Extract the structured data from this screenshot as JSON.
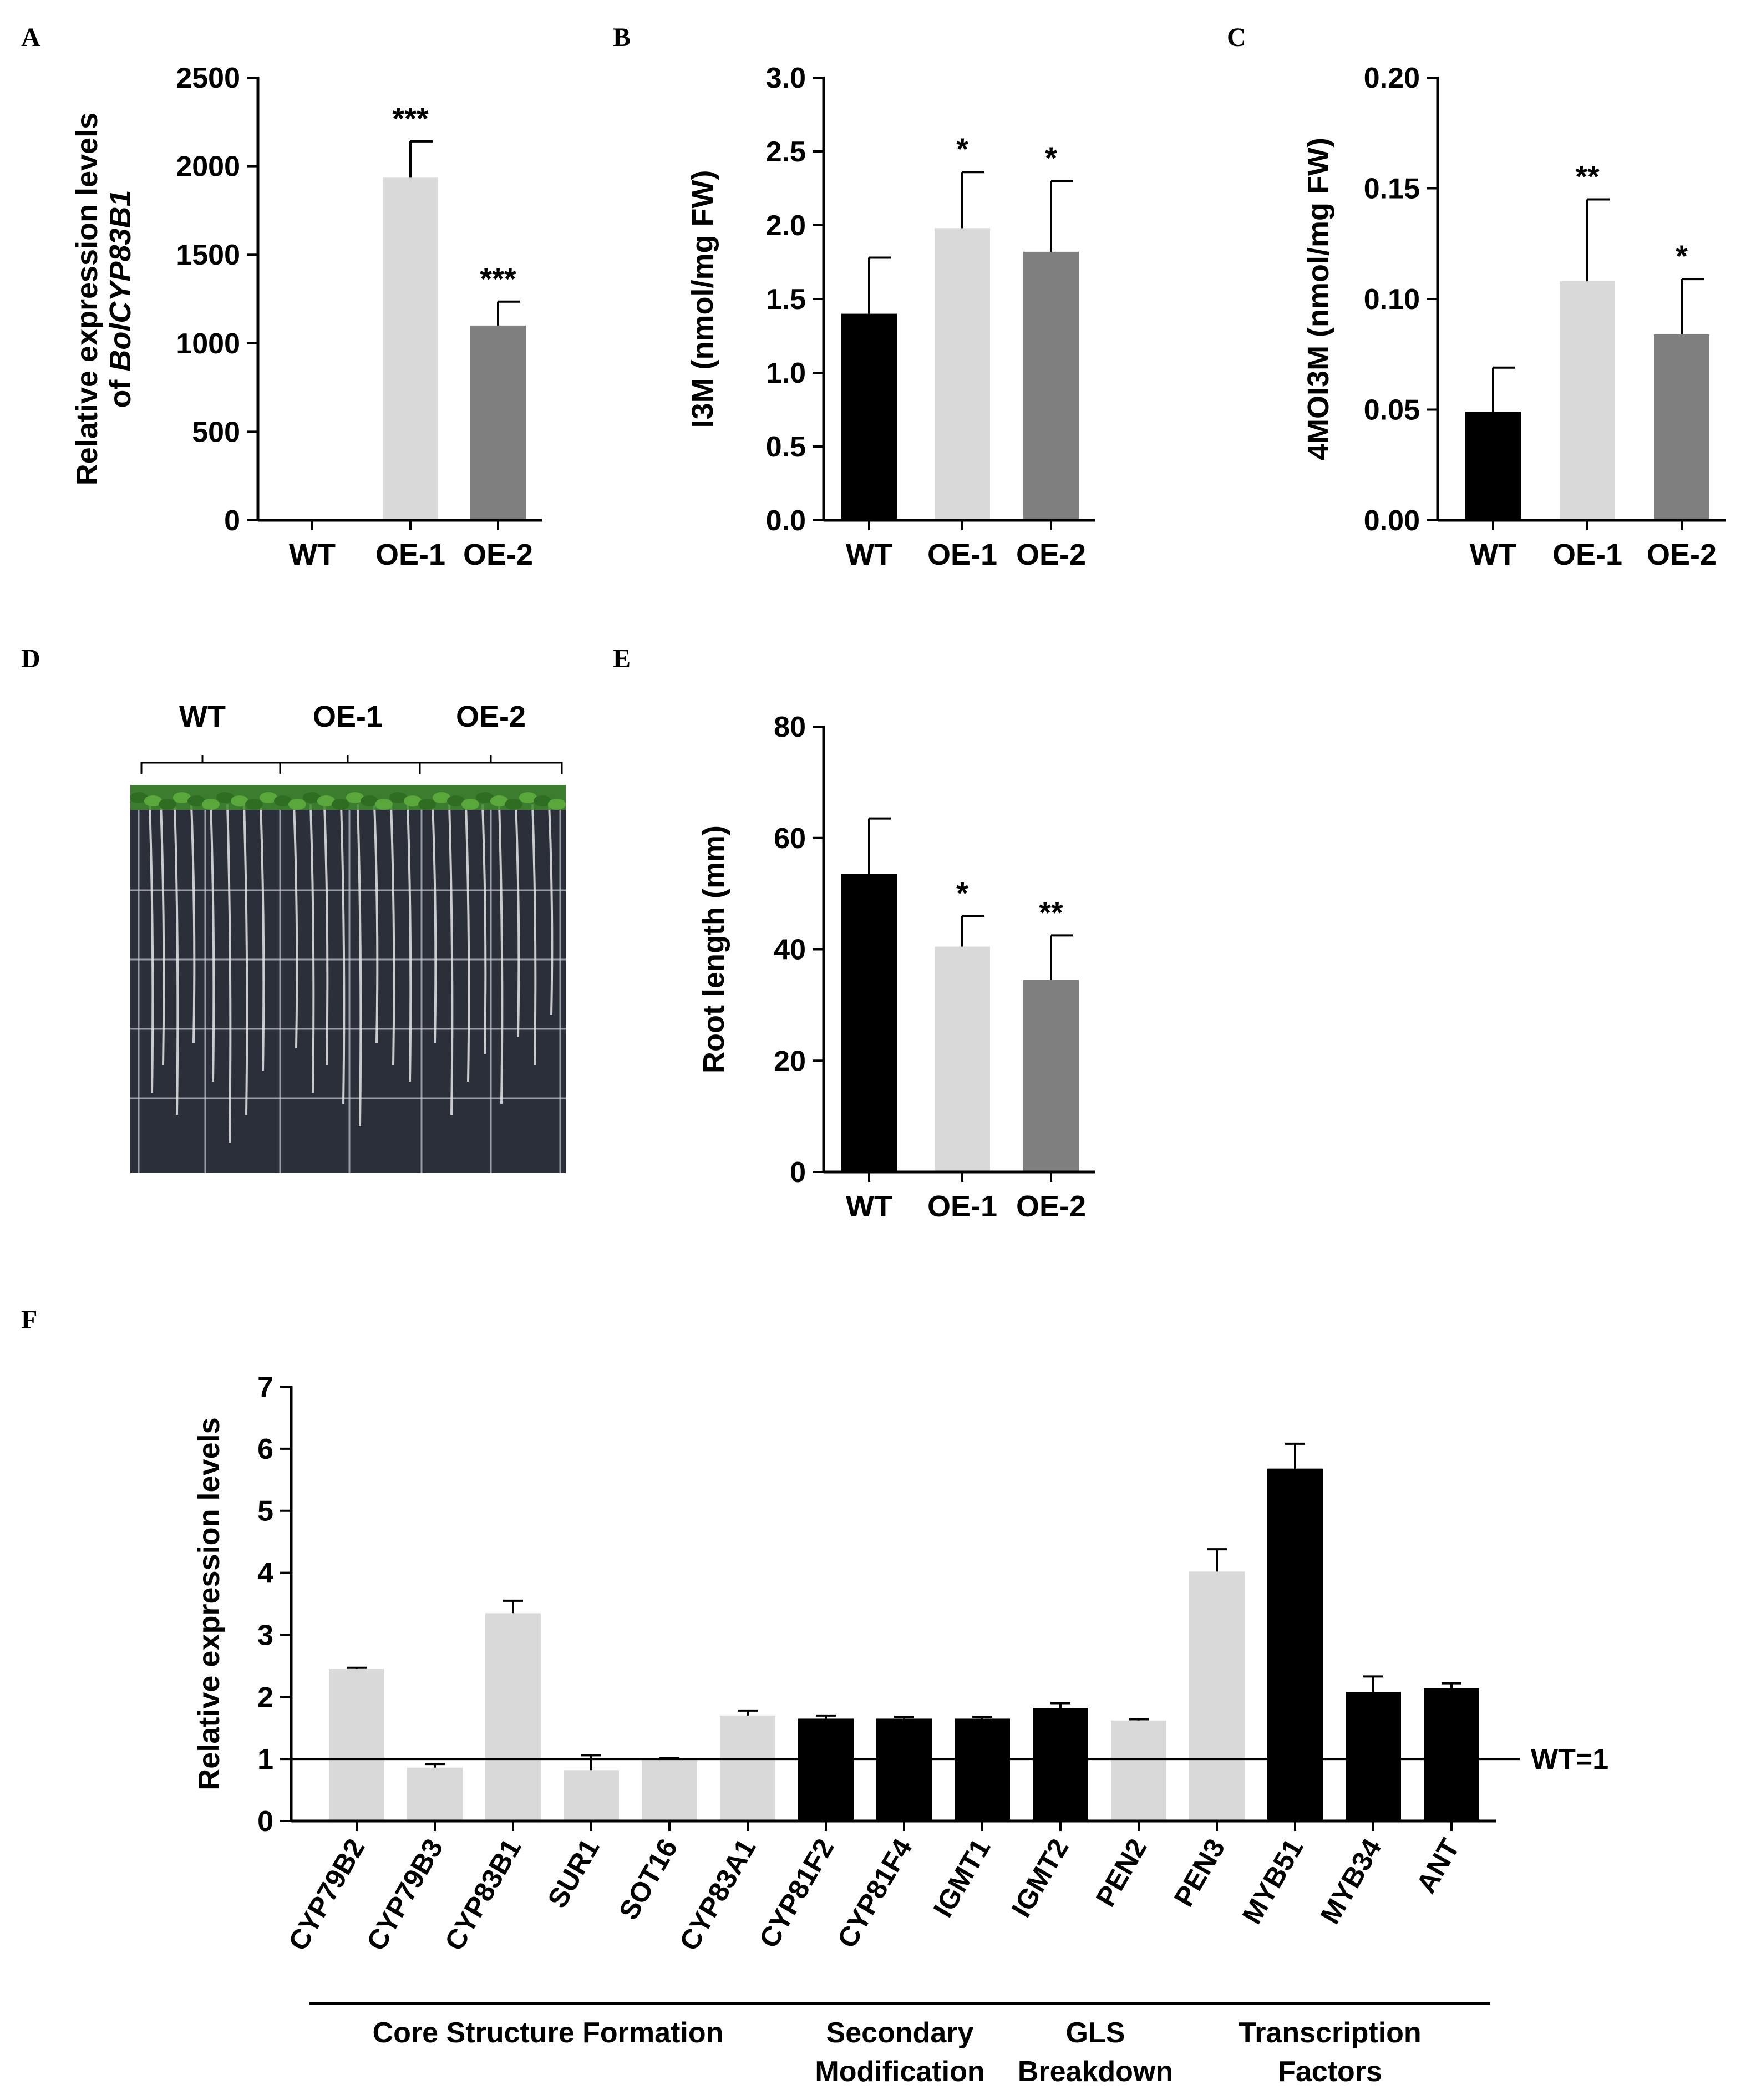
{
  "panel_letters": [
    "A",
    "B",
    "C",
    "D",
    "E",
    "F"
  ],
  "colors": {
    "wt": "#000000",
    "oe1": "#d9d9d9",
    "oe2": "#7f7f7f",
    "axis": "#000000"
  },
  "panel_d": {
    "groups": [
      "WT",
      "OE-1",
      "OE-2"
    ],
    "description_colors": {
      "plate": "#2b2f3a",
      "leaves": "#3f8a2e",
      "grid": "#c9ccd4",
      "roots": "#e6e6e6"
    }
  },
  "chart_data": [
    {
      "id": "A",
      "type": "bar",
      "categories": [
        "WT",
        "OE-1",
        "OE-2"
      ],
      "values": [
        1,
        1935,
        1100
      ],
      "errors": [
        0,
        205,
        135
      ],
      "significance": [
        "",
        "***",
        "***"
      ],
      "ylabel_line1": "Relative expression levels",
      "ylabel_line2_prefix": "of ",
      "ylabel_line2_italic": "BolCYP83B1",
      "ylim": [
        0,
        2500
      ],
      "ticks": [
        "0",
        "500",
        "1000",
        "1500",
        "2000",
        "2500"
      ]
    },
    {
      "id": "B",
      "type": "bar",
      "categories": [
        "WT",
        "OE-1",
        "OE-2"
      ],
      "values": [
        1.4,
        1.98,
        1.82
      ],
      "errors": [
        0.38,
        0.38,
        0.48
      ],
      "significance": [
        "",
        "*",
        "*"
      ],
      "ylabel": "I3M (nmol/mg FW)",
      "ylim": [
        0,
        3.0
      ],
      "ticks": [
        "0.0",
        "0.5",
        "1.0",
        "1.5",
        "2.0",
        "2.5",
        "3.0"
      ]
    },
    {
      "id": "C",
      "type": "bar",
      "categories": [
        "WT",
        "OE-1",
        "OE-2"
      ],
      "values": [
        0.049,
        0.108,
        0.084
      ],
      "errors": [
        0.02,
        0.037,
        0.025
      ],
      "significance": [
        "",
        "**",
        "*"
      ],
      "ylabel": "4MOI3M (nmol/mg FW)",
      "ylim": [
        0,
        0.2
      ],
      "ticks": [
        "0.00",
        "0.05",
        "0.10",
        "0.15",
        "0.20"
      ]
    },
    {
      "id": "E",
      "type": "bar",
      "categories": [
        "WT",
        "OE-1",
        "OE-2"
      ],
      "values": [
        53.5,
        40.5,
        34.5
      ],
      "errors": [
        10,
        5.5,
        8
      ],
      "significance": [
        "",
        "*",
        "**"
      ],
      "ylabel": "Root length (mm)",
      "ylim": [
        0,
        80
      ],
      "ticks": [
        "0",
        "20",
        "40",
        "60",
        "80"
      ]
    },
    {
      "id": "F",
      "type": "bar",
      "categories": [
        "CYP79B2",
        "CYP79B3",
        "CYP83B1",
        "SUR1",
        "SOT16",
        "CYP83A1",
        "CYP81F2",
        "CYP81F4",
        "IGMT1",
        "IGMT2",
        "PEN2",
        "PEN3",
        "MYB51",
        "MYB34",
        "ANT"
      ],
      "values": [
        2.45,
        0.86,
        3.35,
        0.82,
        1.0,
        1.7,
        1.65,
        1.65,
        1.65,
        1.82,
        1.62,
        4.02,
        5.68,
        2.08,
        2.14
      ],
      "errors": [
        0.02,
        0.06,
        0.2,
        0.24,
        0.01,
        0.08,
        0.05,
        0.03,
        0.03,
        0.08,
        0.02,
        0.36,
        0.4,
        0.25,
        0.08
      ],
      "bar_colors": [
        "light",
        "light",
        "light",
        "light",
        "light",
        "light",
        "dark",
        "dark",
        "dark",
        "dark",
        "light",
        "light",
        "dark",
        "dark",
        "dark"
      ],
      "ylabel": "Relative expression levels",
      "ylim": [
        0,
        7
      ],
      "ticks": [
        "0",
        "1",
        "2",
        "3",
        "4",
        "5",
        "6",
        "7"
      ],
      "reference_line": {
        "value": 1,
        "label": "WT=1"
      },
      "groups": [
        {
          "lines": [
            "Core Structure Formation"
          ],
          "from": 0,
          "to": 5
        },
        {
          "lines": [
            "Secondary",
            "Modification"
          ],
          "from": 6,
          "to": 8
        },
        {
          "lines": [
            "GLS",
            "Breakdown"
          ],
          "from": 9,
          "to": 10
        },
        {
          "lines": [
            "Transcription",
            "Factors"
          ],
          "from": 11,
          "to": 14
        }
      ]
    }
  ]
}
